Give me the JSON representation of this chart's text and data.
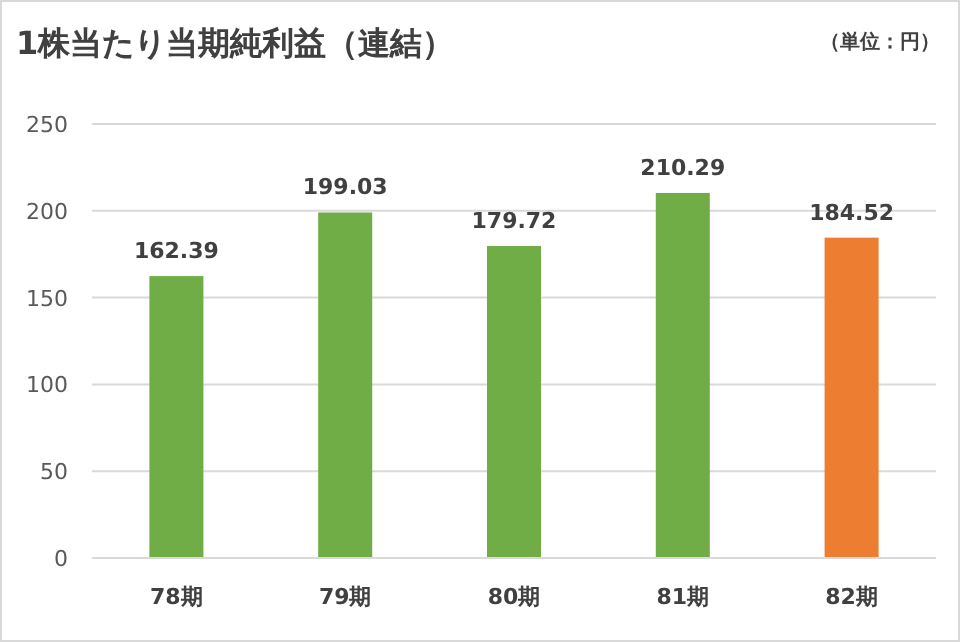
{
  "chart_data": {
    "type": "bar",
    "title": "1株当たり当期純利益（連結）",
    "annotations": [
      "（単位：円）"
    ],
    "categories": [
      "78期",
      "79期",
      "80期",
      "81期",
      "82期"
    ],
    "values": [
      162.39,
      199.03,
      179.72,
      210.29,
      184.52
    ],
    "colors": [
      "#70ad47",
      "#70ad47",
      "#70ad47",
      "#70ad47",
      "#ed7d31"
    ],
    "ylim": [
      0,
      250
    ],
    "yticks": [
      0,
      50,
      100,
      150,
      200,
      250
    ],
    "grid": "y",
    "data_labels": true
  }
}
